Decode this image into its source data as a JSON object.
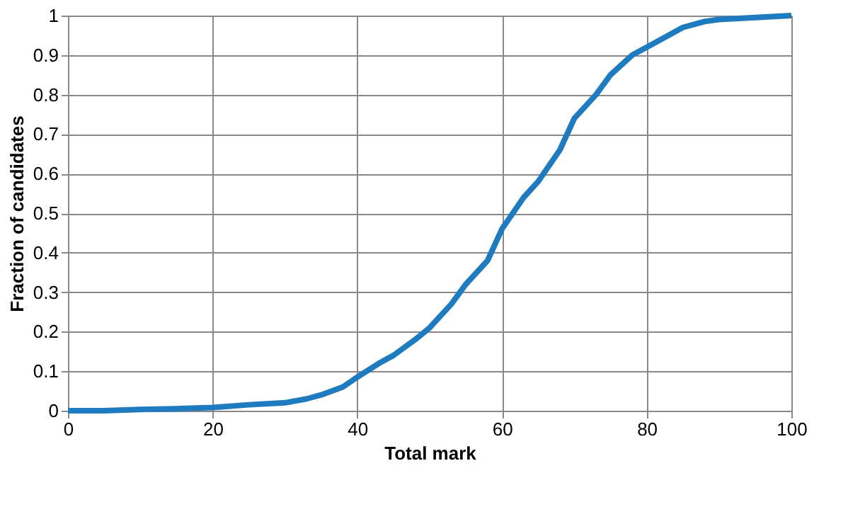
{
  "chart_data": {
    "type": "line",
    "xlabel": "Total mark",
    "ylabel": "Fraction of candidates",
    "x": [
      0,
      5,
      10,
      15,
      20,
      25,
      30,
      33,
      35,
      38,
      40,
      43,
      45,
      48,
      50,
      53,
      55,
      58,
      60,
      63,
      65,
      68,
      70,
      73,
      75,
      78,
      80,
      83,
      85,
      88,
      90,
      95,
      100
    ],
    "series": [
      {
        "color": "#1f7bbf",
        "values": [
          0,
          0,
          0.003,
          0.005,
          0.008,
          0.015,
          0.02,
          0.03,
          0.04,
          0.06,
          0.085,
          0.12,
          0.14,
          0.18,
          0.21,
          0.27,
          0.32,
          0.38,
          0.46,
          0.54,
          0.58,
          0.66,
          0.74,
          0.8,
          0.85,
          0.9,
          0.92,
          0.95,
          0.97,
          0.985,
          0.99,
          0.995,
          1.0
        ]
      }
    ],
    "xlim": [
      0,
      100
    ],
    "xticks": [
      0,
      20,
      40,
      60,
      80,
      100
    ],
    "ylim": [
      0,
      1
    ],
    "yticks": [
      0,
      0.1,
      0.2,
      0.3,
      0.4,
      0.5,
      0.6,
      0.7,
      0.8,
      0.9,
      1
    ],
    "grid": true,
    "legend": false,
    "marker": "none",
    "line_style": "solid"
  }
}
